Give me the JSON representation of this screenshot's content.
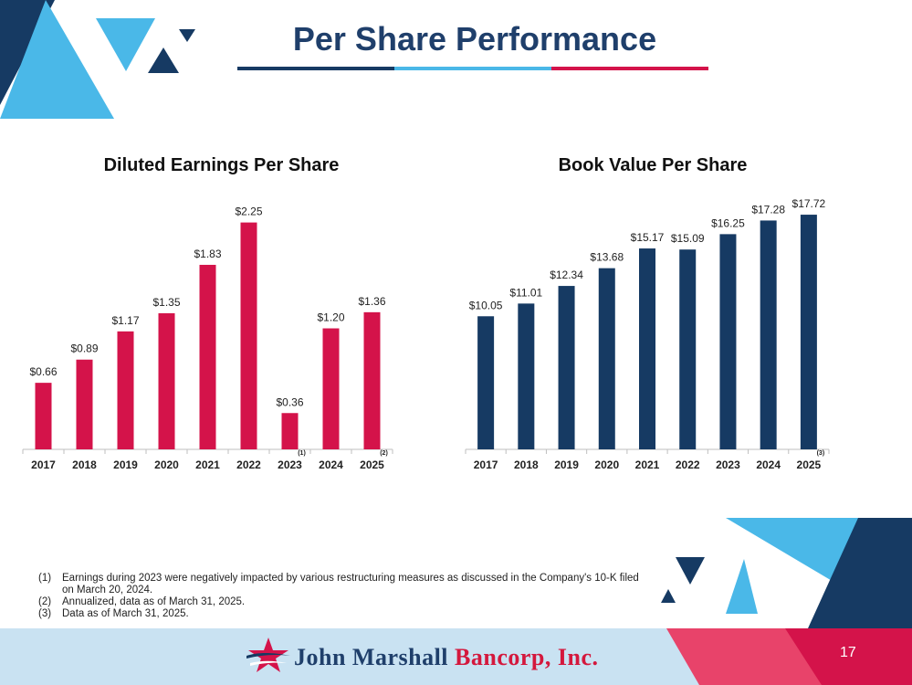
{
  "header": {
    "title": "Per Share Performance"
  },
  "colors": {
    "navy": "#163a63",
    "red": "#d4134a",
    "sky": "#4ab8e8",
    "light_sky": "#c9e2f2"
  },
  "chart_data": [
    {
      "type": "bar",
      "title": "Diluted Earnings Per Share",
      "categories": [
        "2017",
        "2018",
        "2019",
        "2020",
        "2021",
        "2022",
        "2023",
        "2024",
        "2025"
      ],
      "category_notes": [
        "",
        "",
        "",
        "",
        "",
        "",
        "(1)",
        "",
        "(2)"
      ],
      "values": [
        0.66,
        0.89,
        1.17,
        1.35,
        1.83,
        2.25,
        0.36,
        1.2,
        1.36
      ],
      "labels": [
        "$0.66",
        "$0.89",
        "$1.17",
        "$1.35",
        "$1.83",
        "$2.25",
        "$0.36",
        "$1.20",
        "$1.36"
      ],
      "ylim": [
        0,
        2.5
      ],
      "color": "#d4134a",
      "grid": false
    },
    {
      "type": "bar",
      "title": "Book Value Per Share",
      "categories": [
        "2017",
        "2018",
        "2019",
        "2020",
        "2021",
        "2022",
        "2023",
        "2024",
        "2025"
      ],
      "category_notes": [
        "",
        "",
        "",
        "",
        "",
        "",
        "",
        "",
        "(3)"
      ],
      "values": [
        10.05,
        11.01,
        12.34,
        13.68,
        15.17,
        15.09,
        16.25,
        17.28,
        17.72
      ],
      "labels": [
        "$10.05",
        "$11.01",
        "$12.34",
        "$13.68",
        "$15.17",
        "$15.09",
        "$16.25",
        "$17.28",
        "$17.72"
      ],
      "ylim": [
        0,
        20
      ],
      "color": "#163a63",
      "grid": false
    }
  ],
  "footnotes": [
    {
      "num": "(1)",
      "text": "Earnings during 2023 were negatively impacted by various restructuring measures as discussed in the Company's 10-K filed on March 20, 2024."
    },
    {
      "num": "(2)",
      "text": "Annualized, data as of March 31, 2025."
    },
    {
      "num": "(3)",
      "text": "Data as of March 31, 2025."
    }
  ],
  "footer": {
    "logo_part1": "John Marshall",
    "logo_part2": "Bancorp, Inc.",
    "page_number": "17"
  }
}
